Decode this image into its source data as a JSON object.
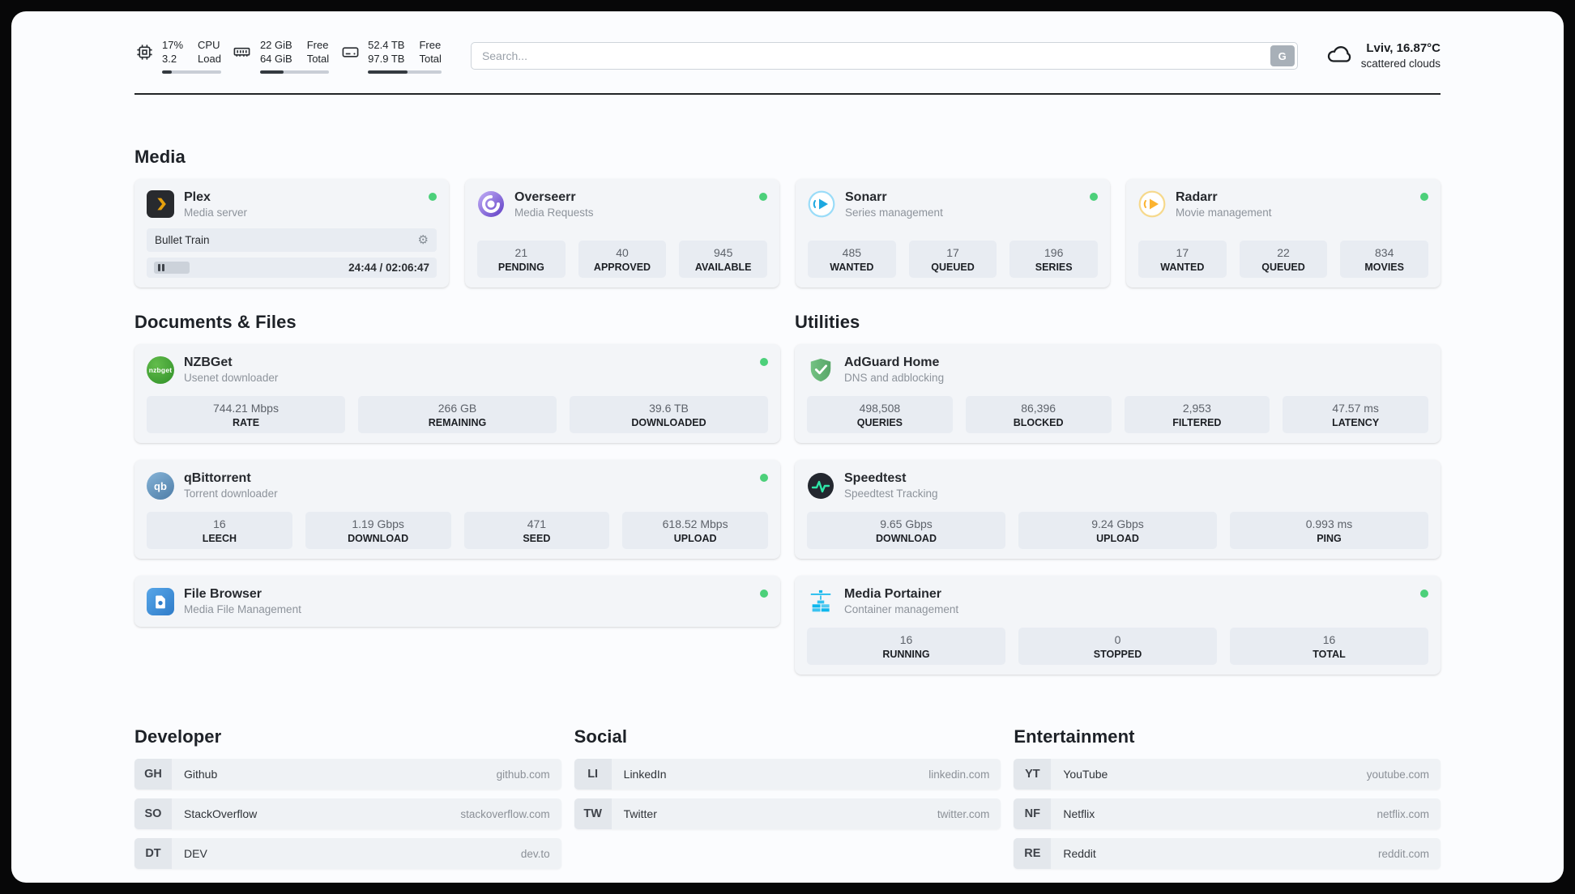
{
  "colors": {
    "status_online": "#4cd07a",
    "plex_yellow": "#e5a00d",
    "overseerr_purple": "#5f3dc4",
    "sonarr_blue": "#1da8e0",
    "radarr_orange": "#fcb330",
    "nzbget_green": "#3ba22f",
    "adguard_green": "#68bc71",
    "qbittorrent_blue": "#4d7ca6",
    "speedtest_green": "#2fe6a8",
    "filebrowser_blue": "#2f7cc9",
    "portainer_blue": "#0db7ed"
  },
  "header": {
    "cpu": {
      "values": [
        "17%",
        "3.2"
      ],
      "labels": [
        "CPU",
        "Load"
      ],
      "progress": 17
    },
    "memory": {
      "values": [
        "22 GiB",
        "64 GiB"
      ],
      "labels": [
        "Free",
        "Total"
      ],
      "progress": 34
    },
    "storage": {
      "values": [
        "52.4 TB",
        "97.9 TB"
      ],
      "labels": [
        "Free",
        "Total"
      ],
      "progress": 54
    },
    "search": {
      "placeholder": "Search...",
      "button_label": "G"
    },
    "weather": {
      "location": "Lviv, 16.87°C",
      "condition": "scattered clouds"
    }
  },
  "sections": {
    "media": "Media",
    "documents": "Documents & Files",
    "utilities": "Utilities",
    "developer": "Developer",
    "social": "Social",
    "entertainment": "Entertainment"
  },
  "apps": {
    "plex": {
      "name": "Plex",
      "subtitle": "Media server",
      "now_playing": "Bullet Train",
      "time_display": "24:44 / 02:06:47",
      "progress": 19.5
    },
    "overseerr": {
      "name": "Overseerr",
      "subtitle": "Media Requests",
      "stats": [
        {
          "value": "21",
          "label": "PENDING"
        },
        {
          "value": "40",
          "label": "APPROVED"
        },
        {
          "value": "945",
          "label": "AVAILABLE"
        }
      ]
    },
    "sonarr": {
      "name": "Sonarr",
      "subtitle": "Series management",
      "stats": [
        {
          "value": "485",
          "label": "WANTED"
        },
        {
          "value": "17",
          "label": "QUEUED"
        },
        {
          "value": "196",
          "label": "SERIES"
        }
      ]
    },
    "radarr": {
      "name": "Radarr",
      "subtitle": "Movie management",
      "stats": [
        {
          "value": "17",
          "label": "WANTED"
        },
        {
          "value": "22",
          "label": "QUEUED"
        },
        {
          "value": "834",
          "label": "MOVIES"
        }
      ]
    },
    "nzbget": {
      "name": "NZBGet",
      "subtitle": "Usenet downloader",
      "icon_text": "nzbget",
      "stats": [
        {
          "value": "744.21 Mbps",
          "label": "RATE"
        },
        {
          "value": "266 GB",
          "label": "REMAINING"
        },
        {
          "value": "39.6 TB",
          "label": "DOWNLOADED"
        }
      ]
    },
    "qbittorrent": {
      "name": "qBittorrent",
      "subtitle": "Torrent downloader",
      "icon_text": "qb",
      "stats": [
        {
          "value": "16",
          "label": "LEECH"
        },
        {
          "value": "1.19 Gbps",
          "label": "DOWNLOAD"
        },
        {
          "value": "471",
          "label": "SEED"
        },
        {
          "value": "618.52 Mbps",
          "label": "UPLOAD"
        }
      ]
    },
    "filebrowser": {
      "name": "File Browser",
      "subtitle": "Media File Management"
    },
    "adguard": {
      "name": "AdGuard Home",
      "subtitle": "DNS and adblocking",
      "stats": [
        {
          "value": "498,508",
          "label": "QUERIES"
        },
        {
          "value": "86,396",
          "label": "BLOCKED"
        },
        {
          "value": "2,953",
          "label": "FILTERED"
        },
        {
          "value": "47.57 ms",
          "label": "LATENCY"
        }
      ]
    },
    "speedtest": {
      "name": "Speedtest",
      "subtitle": "Speedtest Tracking",
      "stats": [
        {
          "value": "9.65 Gbps",
          "label": "DOWNLOAD"
        },
        {
          "value": "9.24 Gbps",
          "label": "UPLOAD"
        },
        {
          "value": "0.993 ms",
          "label": "PING"
        }
      ]
    },
    "portainer": {
      "name": "Media Portainer",
      "subtitle": "Container management",
      "stats": [
        {
          "value": "16",
          "label": "RUNNING"
        },
        {
          "value": "0",
          "label": "STOPPED"
        },
        {
          "value": "16",
          "label": "TOTAL"
        }
      ]
    }
  },
  "bookmarks": {
    "developer": [
      {
        "abbr": "GH",
        "name": "Github",
        "url": "github.com"
      },
      {
        "abbr": "SO",
        "name": "StackOverflow",
        "url": "stackoverflow.com"
      },
      {
        "abbr": "DT",
        "name": "DEV",
        "url": "dev.to"
      }
    ],
    "social": [
      {
        "abbr": "LI",
        "name": "LinkedIn",
        "url": "linkedin.com"
      },
      {
        "abbr": "TW",
        "name": "Twitter",
        "url": "twitter.com"
      }
    ],
    "entertainment": [
      {
        "abbr": "YT",
        "name": "YouTube",
        "url": "youtube.com"
      },
      {
        "abbr": "NF",
        "name": "Netflix",
        "url": "netflix.com"
      },
      {
        "abbr": "RE",
        "name": "Reddit",
        "url": "reddit.com"
      }
    ]
  }
}
